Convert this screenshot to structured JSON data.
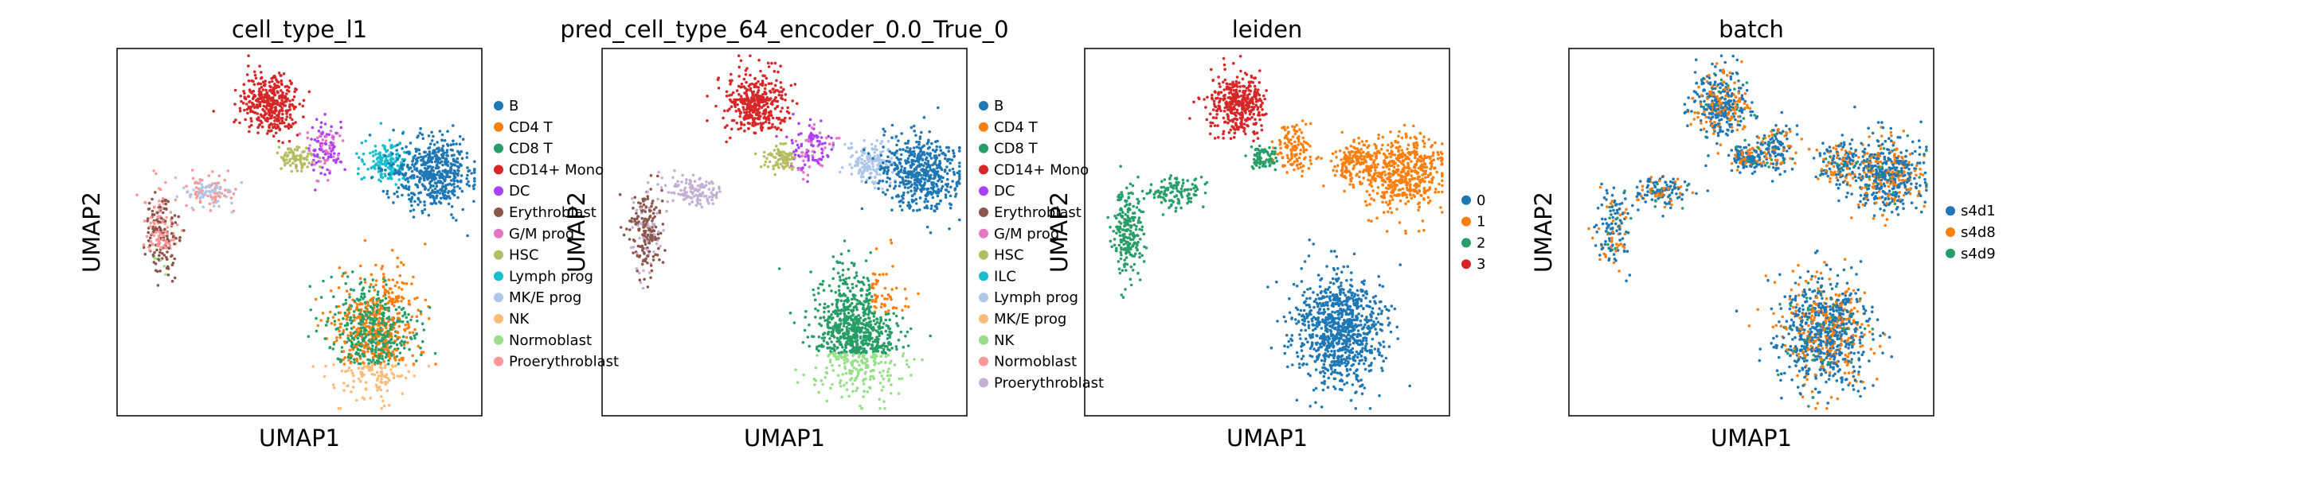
{
  "chart_data": [
    {
      "type": "scatter",
      "title": "cell_type_l1",
      "xlabel": "UMAP1",
      "ylabel": "UMAP2",
      "legend": {
        "placement": "right-outside",
        "entries": [
          {
            "label": "B",
            "color": "#1f77b4"
          },
          {
            "label": "CD4 T",
            "color": "#ff7f0e"
          },
          {
            "label": "CD8 T",
            "color": "#279e68"
          },
          {
            "label": "CD14+ Mono",
            "color": "#d62728"
          },
          {
            "label": "DC",
            "color": "#aa40fc"
          },
          {
            "label": "Erythroblast",
            "color": "#8c564b"
          },
          {
            "label": "G/M prog",
            "color": "#e377c2"
          },
          {
            "label": "HSC",
            "color": "#b5bd61"
          },
          {
            "label": "Lymph prog",
            "color": "#17becf"
          },
          {
            "label": "MK/E prog",
            "color": "#aec7e8"
          },
          {
            "label": "NK",
            "color": "#ffbb78"
          },
          {
            "label": "Normoblast",
            "color": "#98df8a"
          },
          {
            "label": "Proerythroblast",
            "color": "#ff9896"
          }
        ]
      },
      "grid": false
    },
    {
      "type": "scatter",
      "title": "pred_cell_type_64_encoder_0.0_True_0",
      "xlabel": "UMAP1",
      "ylabel": "UMAP2",
      "legend": {
        "placement": "right-outside",
        "entries": [
          {
            "label": "B",
            "color": "#1f77b4"
          },
          {
            "label": "CD4 T",
            "color": "#ff7f0e"
          },
          {
            "label": "CD8 T",
            "color": "#279e68"
          },
          {
            "label": "CD14+ Mono",
            "color": "#d62728"
          },
          {
            "label": "DC",
            "color": "#aa40fc"
          },
          {
            "label": "Erythroblast",
            "color": "#8c564b"
          },
          {
            "label": "G/M prog",
            "color": "#e377c2"
          },
          {
            "label": "HSC",
            "color": "#b5bd61"
          },
          {
            "label": "ILC",
            "color": "#17becf"
          },
          {
            "label": "Lymph prog",
            "color": "#aec7e8"
          },
          {
            "label": "MK/E prog",
            "color": "#ffbb78"
          },
          {
            "label": "NK",
            "color": "#98df8a"
          },
          {
            "label": "Normoblast",
            "color": "#ff9896"
          },
          {
            "label": "Proerythroblast",
            "color": "#c5b0d5"
          }
        ]
      },
      "grid": false
    },
    {
      "type": "scatter",
      "title": "leiden",
      "xlabel": "UMAP1",
      "ylabel": "UMAP2",
      "legend": {
        "placement": "right-outside",
        "entries": [
          {
            "label": "0",
            "color": "#1f77b4"
          },
          {
            "label": "1",
            "color": "#ff7f0e"
          },
          {
            "label": "2",
            "color": "#279e68"
          },
          {
            "label": "3",
            "color": "#d62728"
          }
        ]
      },
      "grid": false
    },
    {
      "type": "scatter",
      "title": "batch",
      "xlabel": "UMAP1",
      "ylabel": "UMAP2",
      "legend": {
        "placement": "right-outside",
        "entries": [
          {
            "label": "s4d1",
            "color": "#1f77b4"
          },
          {
            "label": "s4d8",
            "color": "#ff7f0e"
          },
          {
            "label": "s4d9",
            "color": "#279e68"
          }
        ]
      },
      "grid": false
    }
  ]
}
